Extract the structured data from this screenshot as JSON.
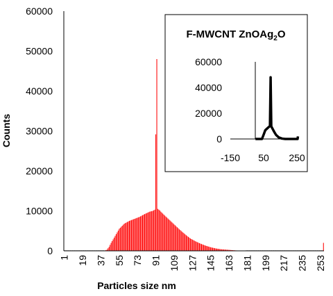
{
  "chart_data": [
    {
      "type": "bar",
      "title": "",
      "xlabel": "Particles size nm",
      "ylabel": "Counts",
      "ylim": [
        0,
        60000
      ],
      "yticks": [
        0,
        10000,
        20000,
        30000,
        40000,
        50000,
        60000
      ],
      "x_tick_labels": [
        "1",
        "19",
        "37",
        "55",
        "73",
        "91",
        "109",
        "127",
        "145",
        "163",
        "181",
        "199",
        "217",
        "235",
        "253"
      ],
      "x_range": [
        1,
        256
      ],
      "grid": false,
      "color": "#ff0000",
      "series": [
        {
          "x": [
            1,
            20,
            40,
            43,
            45,
            47,
            50,
            55,
            60,
            65,
            70,
            75,
            80,
            85,
            88,
            90,
            92,
            93,
            94,
            95,
            96,
            100,
            105,
            110,
            115,
            120,
            125,
            130,
            135,
            140,
            145,
            150,
            155,
            160,
            165,
            170,
            175,
            180,
            190,
            200,
            220,
            240,
            250,
            255,
            256
          ],
          "values": [
            0,
            0,
            0,
            300,
            1000,
            2000,
            3300,
            5500,
            6800,
            7500,
            8000,
            8500,
            9200,
            9800,
            10000,
            10300,
            48000,
            10500,
            10300,
            10100,
            9800,
            8800,
            7600,
            6400,
            5200,
            4100,
            3100,
            2400,
            1800,
            1300,
            900,
            600,
            400,
            300,
            200,
            100,
            50,
            0,
            0,
            0,
            0,
            0,
            0,
            0,
            2000
          ]
        }
      ]
    },
    {
      "type": "line",
      "title": "F-MWCNT ZnOAg2O",
      "title_parts": {
        "main": "F-MWCNT ZnOAg",
        "sub": "2",
        "tail": "O"
      },
      "ylim": [
        0,
        60000
      ],
      "yticks": [
        0,
        20000,
        40000,
        60000
      ],
      "xlim": [
        -150,
        250
      ],
      "xticks": [
        -150,
        50,
        250
      ],
      "grid": false,
      "color": "#000000",
      "series": [
        {
          "x": [
            1,
            40,
            50,
            60,
            70,
            80,
            88,
            92,
            96,
            105,
            115,
            125,
            140,
            160,
            180,
            200,
            220,
            240,
            254,
            256
          ],
          "values": [
            0,
            0,
            3300,
            6800,
            8000,
            9200,
            10000,
            48000,
            9800,
            7600,
            5200,
            3100,
            1300,
            300,
            0,
            0,
            0,
            0,
            0,
            2000
          ]
        }
      ]
    }
  ]
}
